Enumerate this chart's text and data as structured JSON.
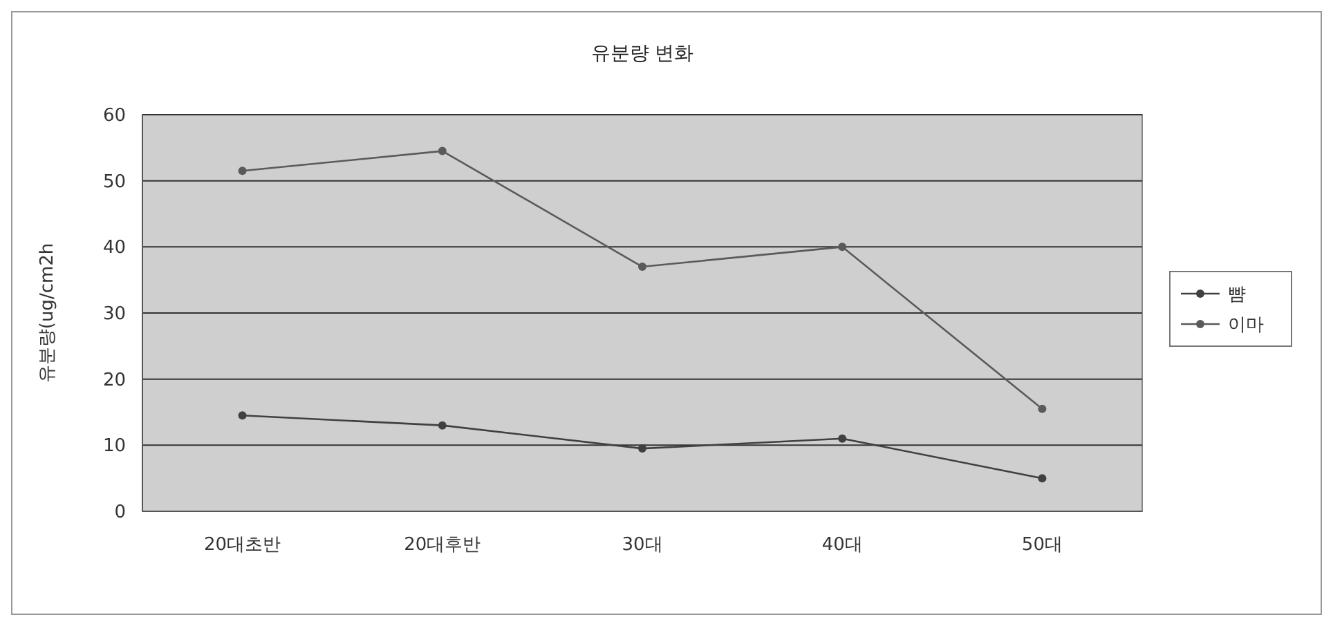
{
  "chart_data": {
    "type": "line",
    "title": "유분량 변화",
    "ylabel": "유분량(ug/cm2h",
    "categories": [
      "20대초반",
      "20대후반",
      "30대",
      "40대",
      "50대"
    ],
    "series": [
      {
        "name": "뺨",
        "color": "#404040",
        "values": [
          14.5,
          13,
          9.5,
          11,
          5
        ]
      },
      {
        "name": "이마",
        "color": "#5a5a5a",
        "values": [
          51.5,
          54.5,
          37,
          40,
          15.5
        ]
      }
    ],
    "ylim": [
      0,
      60
    ],
    "yticks": [
      0,
      10,
      20,
      30,
      40,
      50,
      60
    ],
    "grid": "y",
    "legend": "right",
    "marker": "circle",
    "line_style": "solid"
  }
}
